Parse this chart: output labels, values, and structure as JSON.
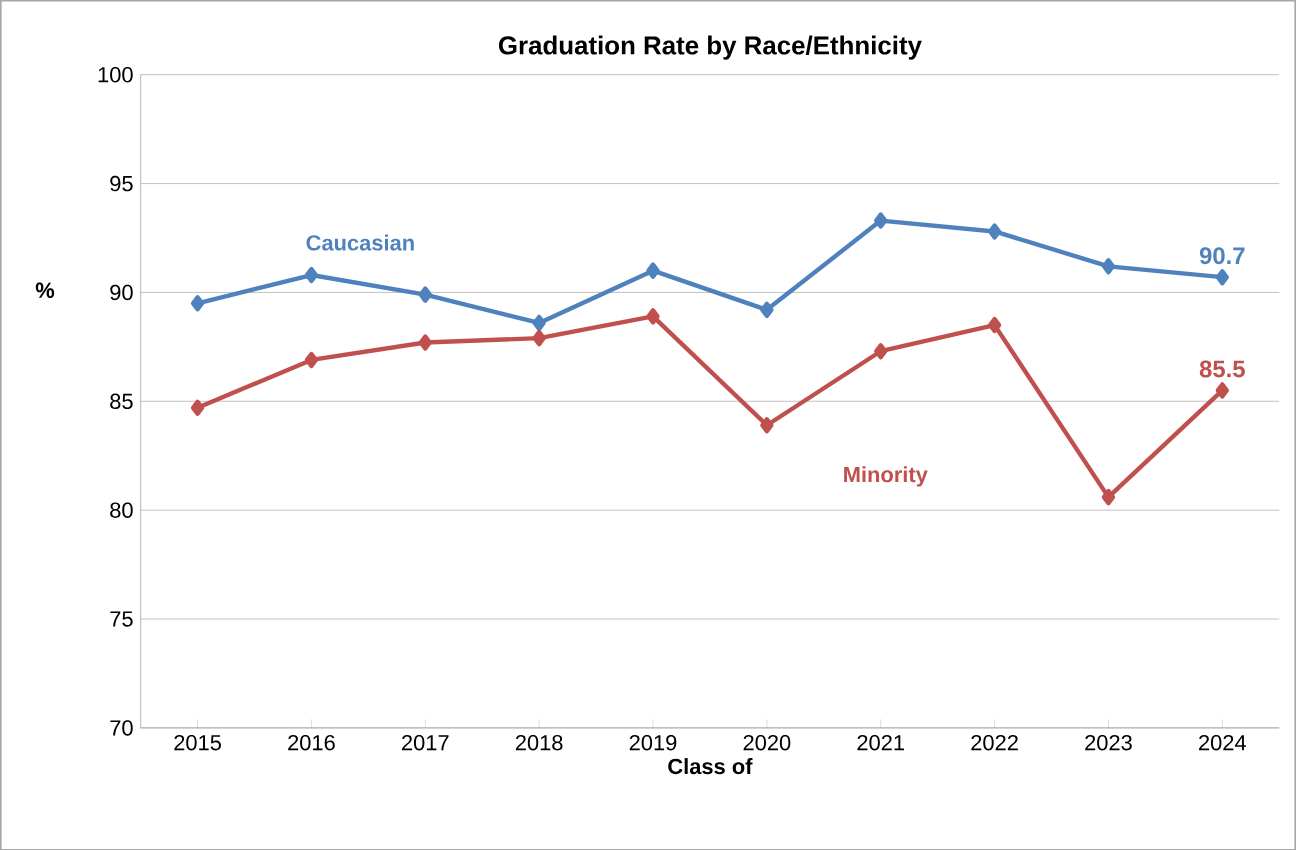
{
  "chart_data": {
    "type": "line",
    "title": "Graduation Rate by Race/Ethnicity",
    "xlabel": "Class of",
    "ylabel": "%",
    "categories": [
      "2015",
      "2016",
      "2017",
      "2018",
      "2019",
      "2020",
      "2021",
      "2022",
      "2023",
      "2024"
    ],
    "series": [
      {
        "name": "Caucasian",
        "color": "#4f81bd",
        "values": [
          89.5,
          90.8,
          89.9,
          88.6,
          91.0,
          89.2,
          93.3,
          92.8,
          91.2,
          90.7
        ],
        "value_labels": [
          null,
          null,
          null,
          null,
          null,
          null,
          null,
          null,
          null,
          "90.7"
        ]
      },
      {
        "name": "Minority",
        "color": "#c0504d",
        "values": [
          84.7,
          86.9,
          87.7,
          87.9,
          88.9,
          83.9,
          87.3,
          88.5,
          80.6,
          85.5
        ],
        "value_labels": [
          null,
          null,
          null,
          null,
          null,
          null,
          null,
          null,
          null,
          "85.5"
        ]
      }
    ],
    "ylim": [
      70,
      100
    ],
    "yticks": [
      70,
      75,
      80,
      85,
      90,
      95,
      100
    ],
    "grid": "y",
    "marker": "diamond",
    "line_style": "solid"
  }
}
